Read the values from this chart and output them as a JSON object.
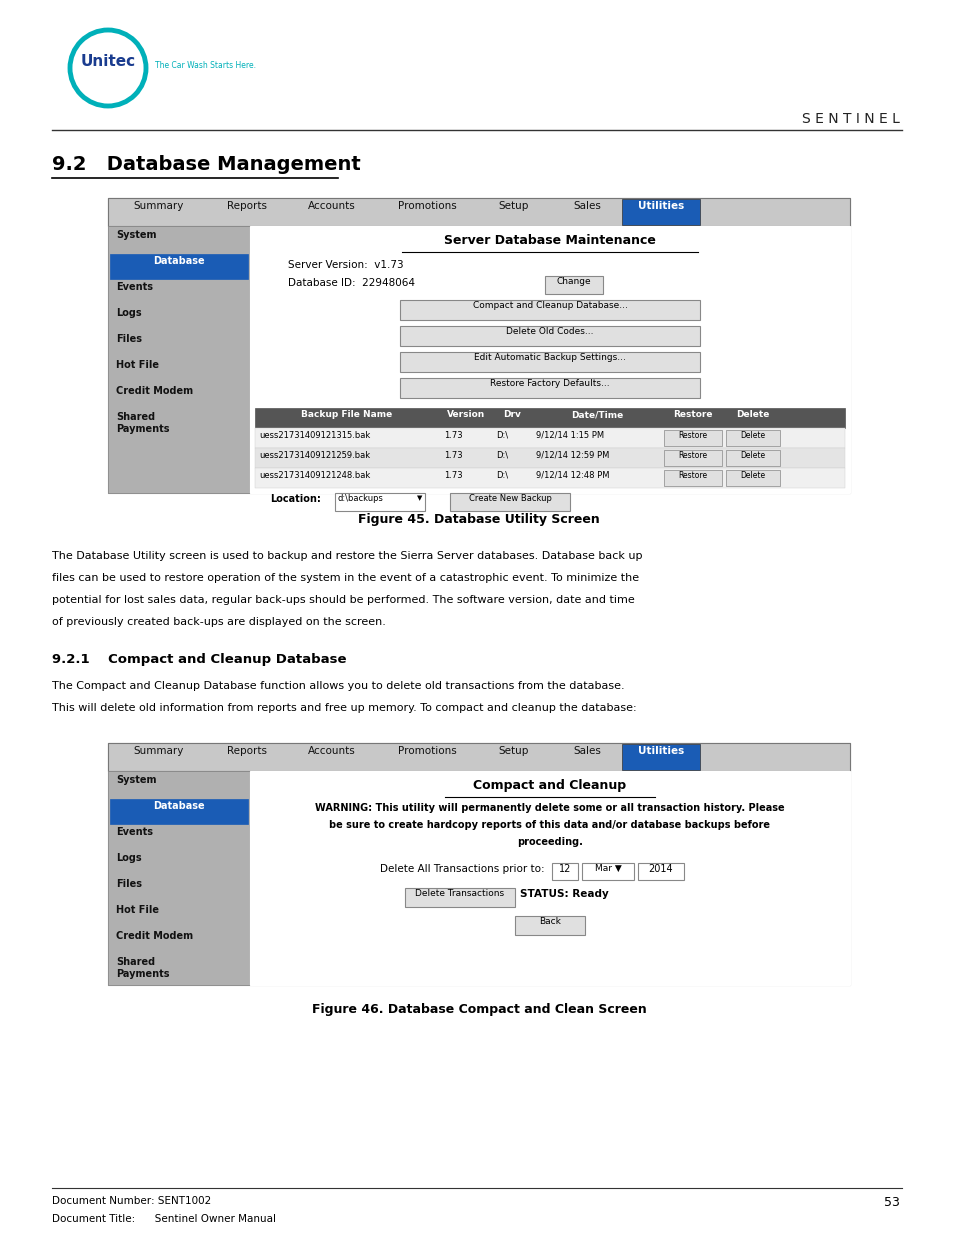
{
  "page_width": 9.54,
  "page_height": 12.35,
  "bg_color": "#ffffff",
  "header_sentinel": "S E N T I N E L",
  "section_title": "9.2   Database Management",
  "fig45_caption": "Figure 45. Database Utility Screen",
  "fig46_caption": "Figure 46. Database Compact and Clean Screen",
  "section_sub_title": "9.2.1    Compact and Cleanup Database",
  "body_text1_lines": [
    "The Database Utility screen is used to backup and restore the Sierra Server databases. Database back up",
    "files can be used to restore operation of the system in the event of a catastrophic event. To minimize the",
    "potential for lost sales data, regular back-ups should be performed. The software version, date and time",
    "of previously created back-ups are displayed on the screen."
  ],
  "body_text2_lines": [
    "The Compact and Cleanup Database function allows you to delete old transactions from the database.",
    "This will delete old information from reports and free up memory. To compact and cleanup the database:"
  ],
  "footer_doc_number": "Document Number: SENT1002",
  "footer_doc_title": "Document Title:      Sentinel Owner Manual",
  "footer_page": "53",
  "nav_tabs": [
    "Summary",
    "Reports",
    "Accounts",
    "Promotions",
    "Setup",
    "Sales",
    "Utilities"
  ],
  "nav_active": "Utilities",
  "sidebar_items": [
    "System",
    "Database",
    "Events",
    "Logs",
    "Files",
    "Hot File",
    "Credit Modem",
    "Shared\nPayments"
  ],
  "sidebar_active": "Database",
  "fig1_title": "Server Database Maintenance",
  "fig1_server_version": "Server Version:  v1.73",
  "fig1_db_id": "Database ID:  22948064",
  "fig1_buttons": [
    "Compact and Cleanup Database...",
    "Delete Old Codes...",
    "Edit Automatic Backup Settings...",
    "Restore Factory Defaults..."
  ],
  "fig1_table_headers": [
    "Backup File Name",
    "Version",
    "Drv",
    "Date/Time",
    "Restore",
    "Delete"
  ],
  "fig1_table_rows": [
    [
      "uess21731409121315.bak",
      "1.73",
      "D:\\",
      "9/12/14 1:15 PM",
      "Restore",
      "Delete"
    ],
    [
      "uess21731409121259.bak",
      "1.73",
      "D:\\",
      "9/12/14 12:59 PM",
      "Restore",
      "Delete"
    ],
    [
      "uess21731409121248.bak",
      "1.73",
      "D:\\",
      "9/12/14 12:48 PM",
      "Restore",
      "Delete"
    ]
  ],
  "fig2_title": "Compact and Cleanup",
  "fig2_warning_lines": [
    "WARNING: This utility will permanently delete some or all transaction history. Please",
    "be sure to create hardcopy reports of this data and/or database backups before",
    "proceeding."
  ],
  "unitec_circle_color": "#00b0b9",
  "unitec_text_color": "#1a3c8f",
  "active_tab_color": "#1a5cb5",
  "sidebar_active_color": "#1a5cb5",
  "sidebar_bg": "#aaaaaa",
  "table_header_bg": "#555555",
  "nav_bg": "#c8c8c8",
  "content_bg": "#ffffff",
  "button_bg": "#e0e0e0",
  "button_border": "#888888",
  "outer_frame_bg": "#d8d8d8"
}
